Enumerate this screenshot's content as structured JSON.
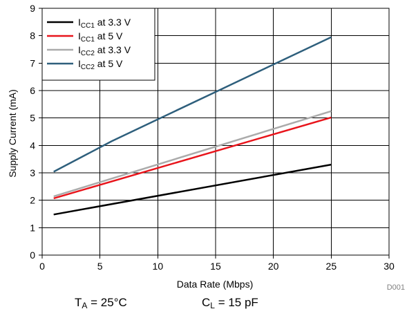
{
  "chart_data": {
    "type": "line",
    "xlabel": "Data Rate (Mbps)",
    "ylabel": "Supply Current (mA)",
    "xlim": [
      0,
      30
    ],
    "ylim": [
      0,
      9
    ],
    "xticks": [
      0,
      5,
      10,
      15,
      20,
      25,
      30
    ],
    "yticks": [
      0,
      1,
      2,
      3,
      4,
      5,
      6,
      7,
      8,
      9
    ],
    "grid": true,
    "legend_position": "top-left",
    "series": [
      {
        "name": "ICC1 at 3.3 V",
        "main": "I",
        "sub": "CC1",
        "suffix": " at 3.3 V",
        "color": "#000000",
        "x": [
          1,
          25
        ],
        "y": [
          1.48,
          3.3
        ]
      },
      {
        "name": "ICC1 at 5 V",
        "main": "I",
        "sub": "CC1",
        "suffix": " at 5 V",
        "color": "#e8141b",
        "x": [
          1,
          25
        ],
        "y": [
          2.07,
          5.02
        ]
      },
      {
        "name": "ICC2 at 3.3 V",
        "main": "I",
        "sub": "CC2",
        "suffix": " at 3.3 V",
        "color": "#ababab",
        "x": [
          1,
          25
        ],
        "y": [
          2.14,
          5.25
        ]
      },
      {
        "name": "ICC2 at 5 V",
        "main": "I",
        "sub": "CC2",
        "suffix": " at 5 V",
        "color": "#2e5f7c",
        "x": [
          1,
          6,
          10,
          15,
          20,
          25
        ],
        "y": [
          3.04,
          4.15,
          4.95,
          5.95,
          6.95,
          7.95
        ]
      }
    ]
  },
  "figure_id": "D001",
  "conditions": {
    "ta": {
      "main": "T",
      "sub": "A",
      "rest": " = 25°C"
    },
    "cl": {
      "main": "C",
      "sub": "L",
      "rest": " = 15 pF"
    }
  }
}
